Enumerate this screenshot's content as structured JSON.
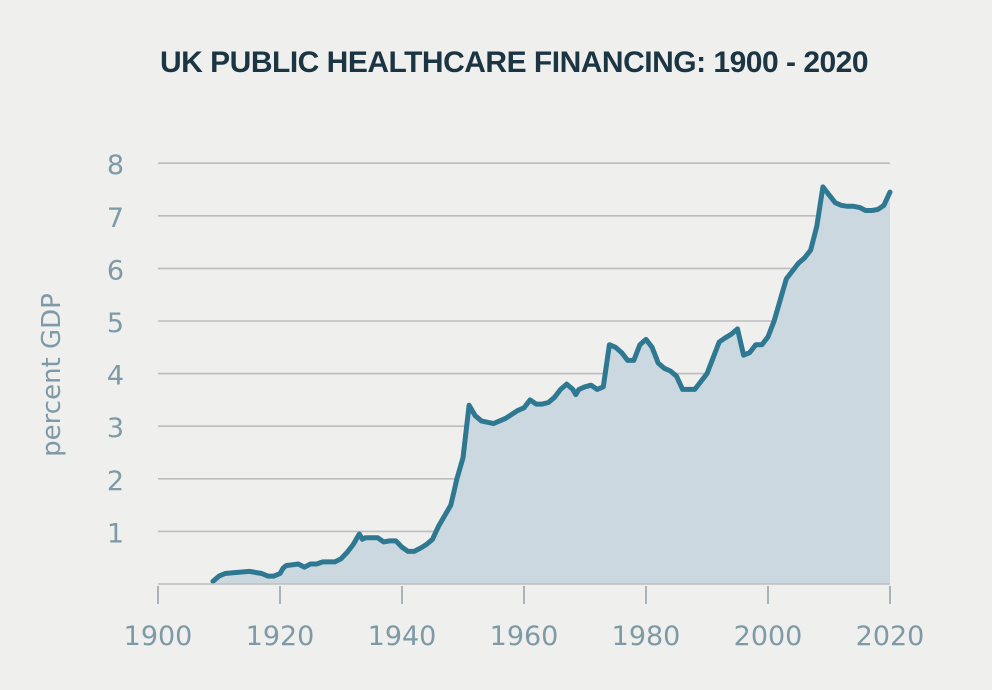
{
  "chart_data": {
    "type": "area",
    "title": "UK PUBLIC HEALTHCARE FINANCING: 1900 - 2020",
    "xlabel": "",
    "ylabel": "percent GDP",
    "xlim": [
      1900,
      2020
    ],
    "ylim": [
      0,
      8
    ],
    "x_ticks": [
      1900,
      1920,
      1940,
      1960,
      1980,
      2000,
      2020
    ],
    "y_ticks": [
      1,
      2,
      3,
      4,
      5,
      6,
      7,
      8
    ],
    "grid": true,
    "colors": {
      "line": "#2f7891",
      "fill": "#cbd8df",
      "grid": "#bdbdbd",
      "axis": "#a9b3b8",
      "tick_label": "#7d9aa6",
      "title": "#1b3543",
      "background": "#efefee"
    },
    "series": [
      {
        "x": [
          1909,
          1910,
          1911,
          1913,
          1915,
          1917,
          1918,
          1919,
          1920,
          1920.5,
          1921,
          1923,
          1924,
          1925,
          1926,
          1927,
          1928,
          1929,
          1930,
          1931,
          1932,
          1933,
          1933.5,
          1934,
          1936,
          1937,
          1938,
          1939,
          1940,
          1941,
          1942,
          1943,
          1944,
          1945,
          1946,
          1947,
          1948,
          1948.5,
          1949,
          1950,
          1951,
          1952,
          1953,
          1955,
          1957,
          1959,
          1960,
          1961,
          1962,
          1963,
          1964,
          1965,
          1966,
          1967,
          1968,
          1968.5,
          1969,
          1970,
          1971,
          1972,
          1973,
          1974,
          1975,
          1976,
          1977,
          1978,
          1979,
          1980,
          1981,
          1982,
          1983,
          1984,
          1985,
          1986,
          1988,
          1990,
          1991,
          1992,
          1993,
          1994,
          1995,
          1996,
          1997,
          1998,
          1999,
          2000,
          2001,
          2002,
          2003,
          2004,
          2005,
          2006,
          2007,
          2008,
          2009,
          2010,
          2011,
          2012,
          2013,
          2014,
          2015,
          2016,
          2017,
          2018,
          2019,
          2020
        ],
        "y": [
          0.05,
          0.15,
          0.2,
          0.22,
          0.24,
          0.2,
          0.15,
          0.15,
          0.2,
          0.3,
          0.35,
          0.38,
          0.32,
          0.38,
          0.38,
          0.42,
          0.42,
          0.42,
          0.48,
          0.6,
          0.75,
          0.95,
          0.85,
          0.88,
          0.88,
          0.8,
          0.82,
          0.82,
          0.7,
          0.62,
          0.62,
          0.68,
          0.75,
          0.85,
          1.1,
          1.3,
          1.5,
          1.75,
          2.0,
          2.4,
          3.4,
          3.2,
          3.1,
          3.05,
          3.15,
          3.3,
          3.35,
          3.5,
          3.42,
          3.42,
          3.45,
          3.55,
          3.7,
          3.8,
          3.7,
          3.6,
          3.7,
          3.75,
          3.78,
          3.7,
          3.75,
          4.55,
          4.5,
          4.4,
          4.25,
          4.25,
          4.55,
          4.65,
          4.5,
          4.2,
          4.1,
          4.05,
          3.95,
          3.7,
          3.7,
          4.0,
          4.3,
          4.6,
          4.68,
          4.75,
          4.85,
          4.35,
          4.4,
          4.55,
          4.55,
          4.7,
          5.0,
          5.4,
          5.8,
          5.95,
          6.1,
          6.2,
          6.35,
          6.8,
          7.55,
          7.4,
          7.25,
          7.2,
          7.18,
          7.18,
          7.16,
          7.1,
          7.1,
          7.12,
          7.2,
          7.45
        ]
      }
    ]
  }
}
